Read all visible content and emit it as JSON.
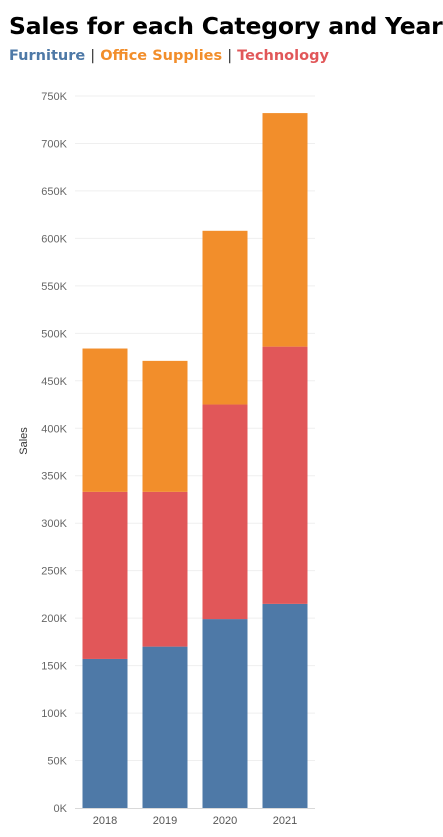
{
  "chart_data": {
    "type": "bar",
    "stacked": true,
    "title": "Sales for each Category and Year",
    "ylabel": "Sales",
    "xlabel": "",
    "ylim": [
      0,
      770000
    ],
    "yticks": [
      "0K",
      "50K",
      "100K",
      "150K",
      "200K",
      "250K",
      "300K",
      "350K",
      "400K",
      "450K",
      "500K",
      "550K",
      "600K",
      "650K",
      "700K",
      "750K"
    ],
    "categories": [
      "2018",
      "2019",
      "2020",
      "2021"
    ],
    "series": [
      {
        "name": "Furniture",
        "color": "#4e79a7",
        "values": [
          157000,
          170000,
          199000,
          215000
        ]
      },
      {
        "name": "Technology",
        "color": "#e15759",
        "values": [
          176000,
          163000,
          226000,
          271000
        ]
      },
      {
        "name": "Office Supplies",
        "color": "#f28e2b",
        "values": [
          151000,
          138000,
          183000,
          246000
        ]
      }
    ],
    "legend": [
      "Furniture",
      "|",
      "Office Supplies",
      "|",
      "Technology"
    ],
    "grid": true
  }
}
